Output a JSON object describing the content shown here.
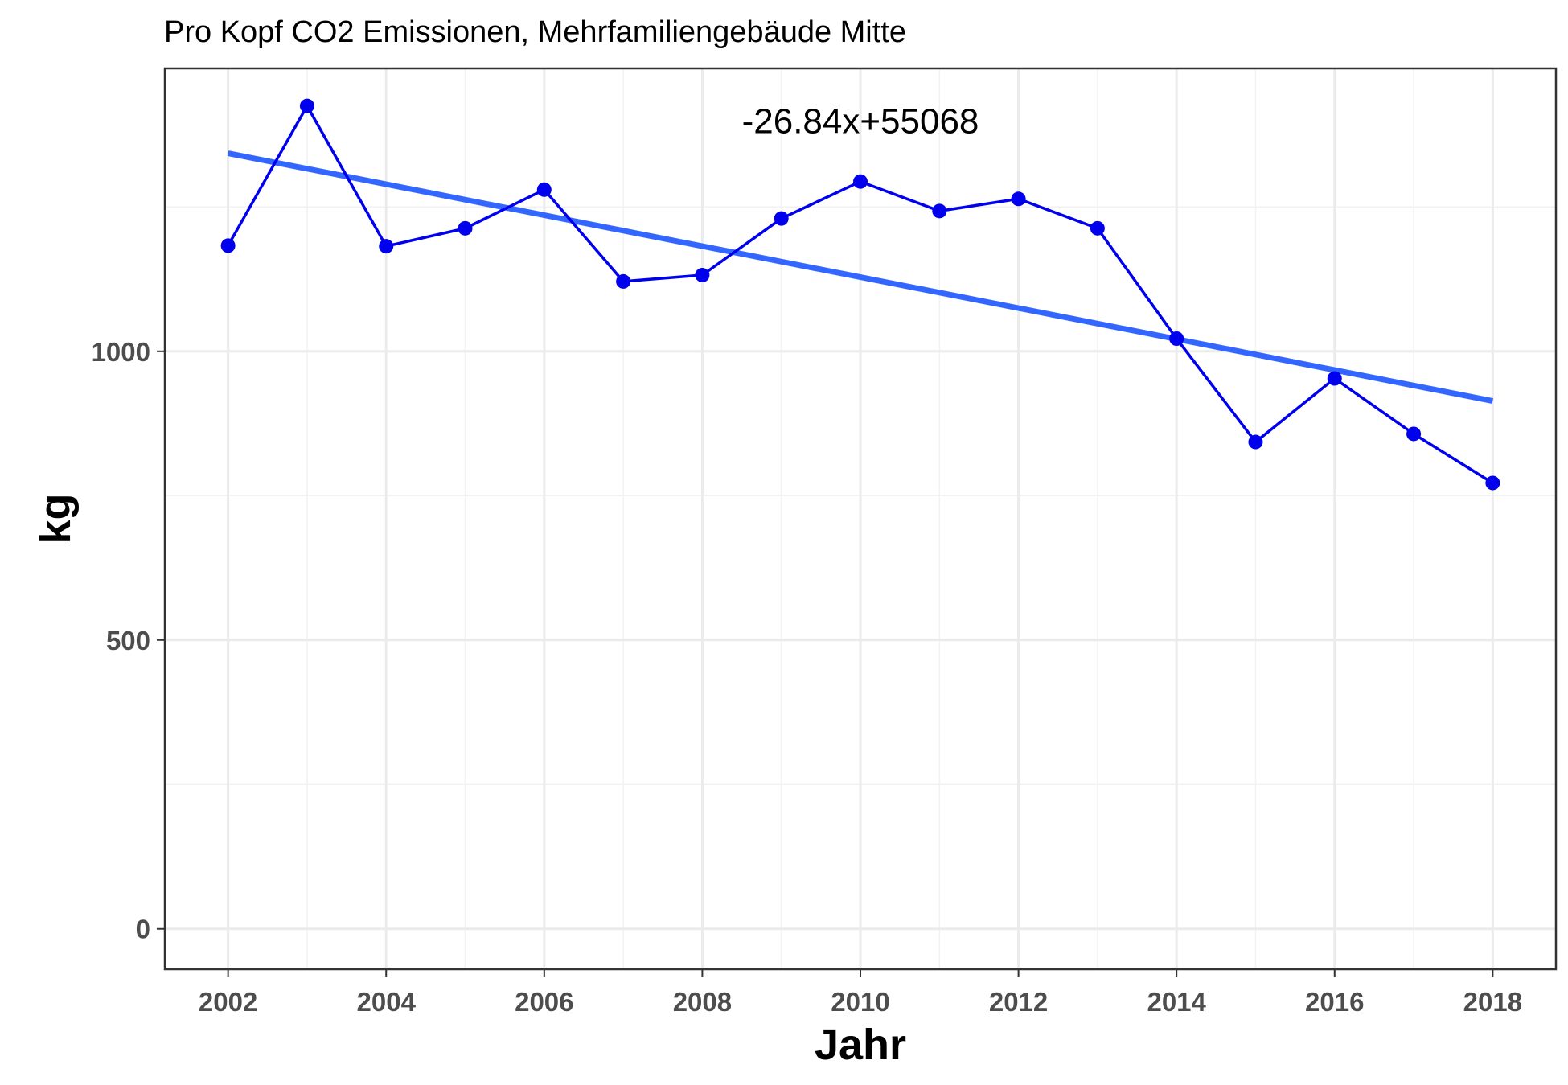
{
  "chart_data": {
    "type": "line",
    "title": "Pro Kopf CO2 Emissionen, Mehrfamiliengebäude Mitte",
    "xlabel": "Jahr",
    "ylabel": "kg",
    "xlim": [
      2001.2,
      2018.8
    ],
    "ylim": [
      -70,
      1490
    ],
    "x_ticks": [
      2002,
      2004,
      2006,
      2008,
      2010,
      2012,
      2014,
      2016,
      2018
    ],
    "x_tick_labels": [
      "2002",
      "2004",
      "2006",
      "2008",
      "2010",
      "2012",
      "2014",
      "2016",
      "2018"
    ],
    "y_ticks": [
      0,
      500,
      1000
    ],
    "y_tick_labels": [
      "0",
      "500",
      "1000"
    ],
    "grid": true,
    "x": [
      2002,
      2003,
      2004,
      2005,
      2006,
      2007,
      2008,
      2009,
      2010,
      2011,
      2012,
      2013,
      2014,
      2015,
      2016,
      2017,
      2018
    ],
    "series": [
      {
        "values": [
          1183,
          1425,
          1182,
          1213,
          1280,
          1121,
          1132,
          1230,
          1294,
          1243,
          1264,
          1213,
          1022,
          843,
          953,
          857,
          772
        ],
        "color": "#0000ee"
      }
    ],
    "trendline": {
      "x": [
        2002,
        2018
      ],
      "values": [
        1343,
        914
      ],
      "color": "#3366ff"
    },
    "annotation": {
      "text": "-26.84x+55068",
      "x": 2010,
      "y": 1400
    }
  }
}
